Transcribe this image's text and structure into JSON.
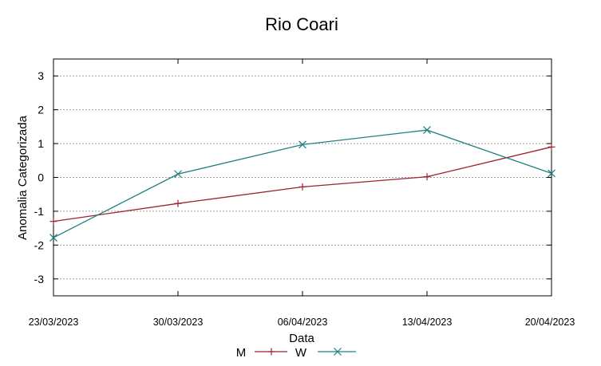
{
  "chart_data": {
    "type": "line",
    "title": "Rio Coari",
    "xlabel": "Data",
    "ylabel": "Anomalia Categorizada",
    "categories": [
      "23/03/2023",
      "30/03/2023",
      "06/04/2023",
      "13/04/2023",
      "20/04/2023"
    ],
    "ylim": [
      -3.5,
      3.5
    ],
    "yticks": [
      "3",
      "2",
      "1",
      "0",
      "-1",
      "-2",
      "-3"
    ],
    "ytick_values": [
      3,
      2,
      1,
      0,
      -1,
      -2,
      -3
    ],
    "grid": true,
    "legend_position": "bottom",
    "series": [
      {
        "name": "M",
        "color": "#9c2230",
        "marker": "plus",
        "values": [
          -1.3,
          -0.77,
          -0.28,
          0.02,
          0.9
        ]
      },
      {
        "name": "W",
        "color": "#1e7f80",
        "marker": "cross",
        "values": [
          -1.78,
          0.1,
          0.97,
          1.4,
          0.12
        ]
      }
    ]
  }
}
